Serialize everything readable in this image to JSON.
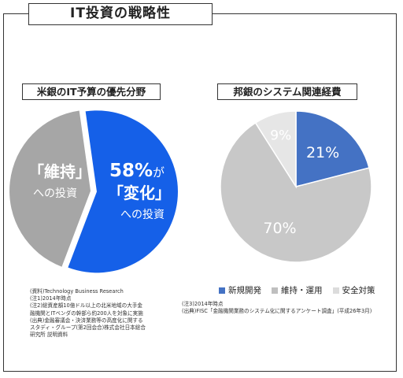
{
  "page": {
    "title": "IT投資の戦略性"
  },
  "left_panel": {
    "title": "米銀のIT予算の優先分野",
    "maintenance_label": "「維持」",
    "maintenance_sub": "への投資",
    "change_percent": "58%",
    "change_ga": "が",
    "change_label": "「変化」",
    "change_sub": "への投資",
    "notes": [
      "(資料)Technology Business Research",
      "(注1)2014年時点",
      "(注2)総資産額10億ドル以上の北米地域の大手金",
      "融機関とITベンダの幹部ら約200人を対象に実施",
      "(出典)金融審議会・決済業務等の高度化に関する",
      "スタディ・グループ(第2回会合)株式会社日本総合",
      "研究所 説明資料"
    ]
  },
  "right_panel": {
    "title": "邦銀のシステム関連経費",
    "notes": [
      "(注3)2014年時点",
      "(出典)FISC「金融機関業務のシステム化に関するアンケート調査」(平成26年3月)"
    ]
  },
  "colors": {
    "change": "#1560e8",
    "maintenance": "#a6a6a6",
    "new_dev": "#4472c4",
    "maintenance_ops": "#c8c8c8",
    "security": "#e6e6e6"
  },
  "chart_data": [
    {
      "type": "pie",
      "title": "米銀のIT予算の優先分野",
      "slices": [
        {
          "label": "「変化」への投資",
          "value": 58
        },
        {
          "label": "「維持」への投資",
          "value": 42
        }
      ]
    },
    {
      "type": "pie",
      "title": "邦銀のシステム関連経費",
      "legend_position": "bottom",
      "slices": [
        {
          "label": "新規開発",
          "value": 21,
          "display": "21%"
        },
        {
          "label": "維持・運用",
          "value": 70,
          "display": "70%"
        },
        {
          "label": "安全対策",
          "value": 9,
          "display": "9%"
        }
      ]
    }
  ]
}
